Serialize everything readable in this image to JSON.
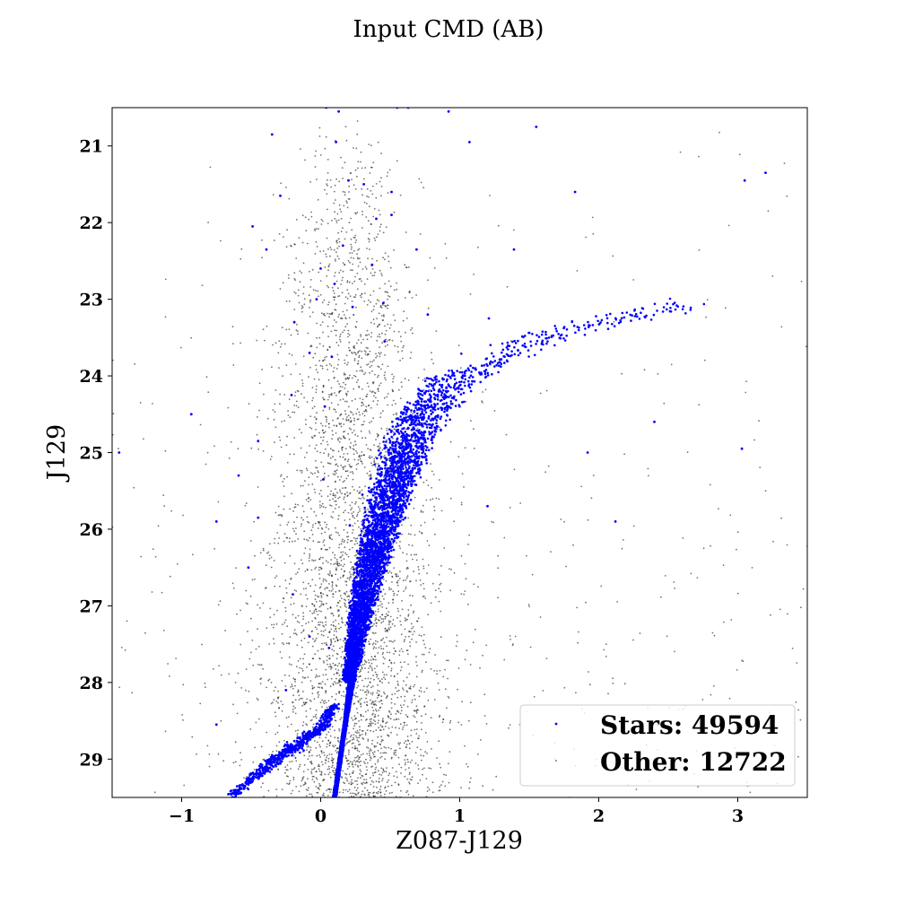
{
  "chart_data": {
    "type": "scatter",
    "title": "Input CMD (AB)",
    "xlabel": "Z087-J129",
    "ylabel": "J129",
    "xlim": [
      -1.5,
      3.5
    ],
    "ylim": [
      29.5,
      20.5
    ],
    "y_inverted": true,
    "xticks": [
      -1,
      0,
      1,
      2,
      3
    ],
    "xtick_labels": [
      "−1",
      "0",
      "1",
      "2",
      "3"
    ],
    "yticks": [
      21,
      22,
      23,
      24,
      25,
      26,
      27,
      28,
      29
    ],
    "ytick_labels": [
      "21",
      "22",
      "23",
      "24",
      "25",
      "26",
      "27",
      "28",
      "29"
    ],
    "grid": false,
    "legend_position": "lower-right",
    "series": [
      {
        "name": "Stars: 49594",
        "color": "#0000ff",
        "marker": "dot",
        "main_sequence_ridge": [
          {
            "x": 0.1,
            "y": 29.5
          },
          {
            "x": 0.14,
            "y": 29.0
          },
          {
            "x": 0.18,
            "y": 28.5
          },
          {
            "x": 0.22,
            "y": 28.0
          },
          {
            "x": 0.27,
            "y": 27.5
          },
          {
            "x": 0.33,
            "y": 27.0
          },
          {
            "x": 0.4,
            "y": 26.5
          },
          {
            "x": 0.48,
            "y": 26.0
          },
          {
            "x": 0.56,
            "y": 25.5
          },
          {
            "x": 0.66,
            "y": 25.0
          },
          {
            "x": 0.8,
            "y": 24.5
          },
          {
            "x": 1.0,
            "y": 24.1
          },
          {
            "x": 1.25,
            "y": 23.8
          },
          {
            "x": 1.6,
            "y": 23.5
          },
          {
            "x": 2.0,
            "y": 23.3
          },
          {
            "x": 2.4,
            "y": 23.15
          },
          {
            "x": 2.6,
            "y": 23.1
          }
        ],
        "white_dwarf_branch": [
          {
            "x": -0.65,
            "y": 29.5
          },
          {
            "x": -0.4,
            "y": 29.1
          },
          {
            "x": -0.2,
            "y": 28.85
          },
          {
            "x": 0.0,
            "y": 28.6
          },
          {
            "x": 0.1,
            "y": 28.3
          }
        ],
        "outliers": [
          {
            "x": 0.04,
            "y": 20.5
          },
          {
            "x": 0.13,
            "y": 20.55
          },
          {
            "x": 0.55,
            "y": 20.5
          },
          {
            "x": 0.63,
            "y": 20.5
          },
          {
            "x": 0.92,
            "y": 20.55
          },
          {
            "x": 1.55,
            "y": 20.75
          },
          {
            "x": 1.07,
            "y": 20.95
          },
          {
            "x": -0.35,
            "y": 20.85
          },
          {
            "x": 0.11,
            "y": 20.95
          },
          {
            "x": 3.2,
            "y": 21.35
          },
          {
            "x": 3.05,
            "y": 21.45
          },
          {
            "x": 1.83,
            "y": 21.6
          },
          {
            "x": 0.2,
            "y": 21.45
          },
          {
            "x": 0.31,
            "y": 21.5
          },
          {
            "x": 0.51,
            "y": 21.6
          },
          {
            "x": -0.29,
            "y": 21.65
          },
          {
            "x": 0.4,
            "y": 21.95
          },
          {
            "x": 0.51,
            "y": 21.9
          },
          {
            "x": -0.49,
            "y": 22.05
          },
          {
            "x": -0.39,
            "y": 22.35
          },
          {
            "x": 0.16,
            "y": 22.3
          },
          {
            "x": 0.69,
            "y": 22.35
          },
          {
            "x": 1.39,
            "y": 22.35
          },
          {
            "x": 0.0,
            "y": 22.6
          },
          {
            "x": 0.37,
            "y": 22.55
          },
          {
            "x": 0.1,
            "y": 22.8
          },
          {
            "x": -0.03,
            "y": 23.0
          },
          {
            "x": -0.19,
            "y": 23.3
          },
          {
            "x": 0.23,
            "y": 23.1
          },
          {
            "x": 0.45,
            "y": 23.05
          },
          {
            "x": 0.77,
            "y": 23.2
          },
          {
            "x": 1.21,
            "y": 23.25
          },
          {
            "x": -0.08,
            "y": 23.7
          },
          {
            "x": 0.08,
            "y": 23.75
          },
          {
            "x": 0.46,
            "y": 23.55
          },
          {
            "x": -0.21,
            "y": 24.25
          },
          {
            "x": 0.03,
            "y": 24.4
          },
          {
            "x": -0.93,
            "y": 24.5
          },
          {
            "x": -1.45,
            "y": 25.0
          },
          {
            "x": -0.45,
            "y": 24.85
          },
          {
            "x": 2.4,
            "y": 24.6
          },
          {
            "x": 1.92,
            "y": 25.0
          },
          {
            "x": 3.03,
            "y": 24.95
          },
          {
            "x": -0.59,
            "y": 25.3
          },
          {
            "x": 0.02,
            "y": 25.35
          },
          {
            "x": 0.3,
            "y": 25.55
          },
          {
            "x": 1.2,
            "y": 25.7
          },
          {
            "x": -0.75,
            "y": 25.9
          },
          {
            "x": -0.45,
            "y": 25.85
          },
          {
            "x": 2.12,
            "y": 25.9
          },
          {
            "x": 0.21,
            "y": 25.95
          },
          {
            "x": -0.52,
            "y": 26.5
          },
          {
            "x": -0.2,
            "y": 26.85
          },
          {
            "x": -0.08,
            "y": 27.4
          },
          {
            "x": 0.06,
            "y": 27.55
          },
          {
            "x": -0.25,
            "y": 28.1
          },
          {
            "x": -0.75,
            "y": 28.55
          }
        ]
      },
      {
        "name": "Other: 12722",
        "color": "#000000",
        "marker": "dot",
        "distribution": {
          "center_x": 0.22,
          "spread_x": 0.32,
          "y_range": [
            20.6,
            29.5
          ],
          "density_increasing_toward": "faint",
          "wide_halo_x_range": [
            -1.5,
            3.5
          ]
        }
      }
    ]
  }
}
